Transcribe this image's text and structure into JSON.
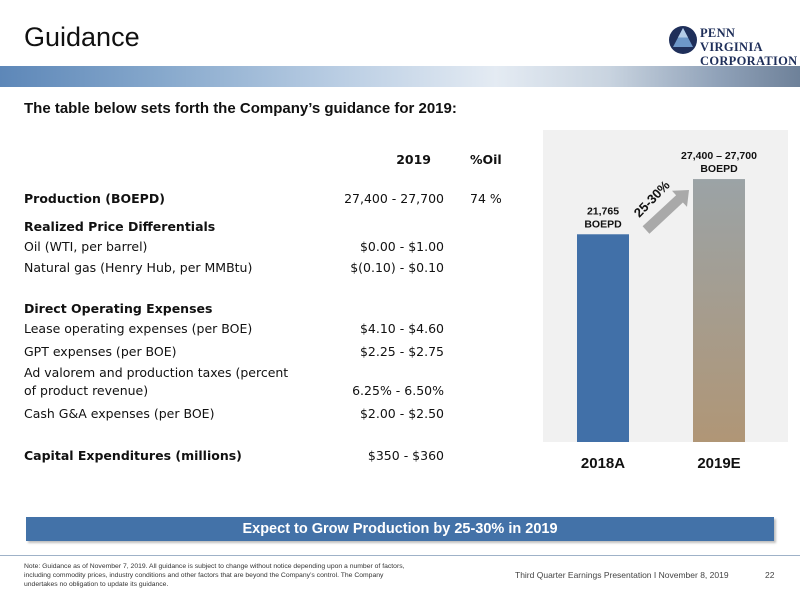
{
  "header": {
    "title": "Guidance",
    "logo_line1": "PENN VIRGINIA",
    "logo_line2": "CORPORATION"
  },
  "subtitle": "The table below sets forth the Company’s guidance for 2019:",
  "table": {
    "col_2019": "2019",
    "col_oil": "%Oil",
    "rows": [
      {
        "label": "Production (BOEPD)",
        "value": "27,400 - 27,700",
        "oil": "74 %"
      },
      {
        "label": "Realized Price Differentials",
        "value": "",
        "oil": ""
      },
      {
        "label": "Oil (WTI, per barrel)",
        "value": "$0.00 - $1.00",
        "oil": ""
      },
      {
        "label": "Natural gas (Henry Hub, per MMBtu)",
        "value": "$(0.10) - $0.10",
        "oil": ""
      },
      {
        "label": "Direct Operating Expenses",
        "value": "",
        "oil": ""
      },
      {
        "label": "Lease operating expenses (per BOE)",
        "value": "$4.10 - $4.60",
        "oil": ""
      },
      {
        "label": "GPT expenses (per BOE)",
        "value": "$2.25 - $2.75",
        "oil": ""
      },
      {
        "label": "Ad valorem and production taxes (percent",
        "value": "",
        "oil": ""
      },
      {
        "label": "of product revenue)",
        "value": "6.25% - 6.50%",
        "oil": ""
      },
      {
        "label": "Cash G&A expenses (per BOE)",
        "value": "$2.00 - $2.50",
        "oil": ""
      },
      {
        "label": "Capital Expenditures (millions)",
        "value": "$350 - $360",
        "oil": ""
      }
    ]
  },
  "chart_data": {
    "type": "bar",
    "categories": [
      "2018A",
      "2019E"
    ],
    "values": [
      21765,
      27550
    ],
    "value_labels": [
      {
        "line1": "21,765",
        "line2": "BOEPD"
      },
      {
        "line1": "27,400 – 27,700",
        "line2": "BOEPD"
      }
    ],
    "growth_label": "25-30%",
    "ylim": [
      0,
      28500
    ],
    "colors": {
      "bar_2018": "#4170a8",
      "bar_2019_top": "#9ba3a6",
      "bar_2019_bottom": "#b09676",
      "arrow": "#a9a9a9"
    }
  },
  "banner": "Expect to Grow Production by 25-30% in 2019",
  "footer": {
    "note": "Note: Guidance as of November 7, 2019. All guidance is subject to change without notice depending upon a number of factors, including commodity prices, industry conditions and other factors that are beyond the Company’s control. The Company undertakes no obligation to update its guidance.",
    "presentation": "Third Quarter Earnings Presentation I November 8, 2019",
    "page": "22"
  },
  "colors": {
    "band_start": "#5d87b8",
    "banner": "#4372a8",
    "logo_navy": "#1f2f5a"
  }
}
